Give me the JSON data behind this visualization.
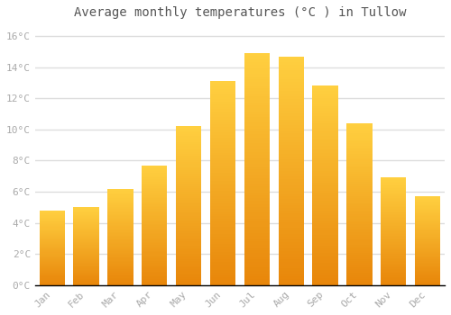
{
  "title": "Average monthly temperatures (°C ) in Tullow",
  "months": [
    "Jan",
    "Feb",
    "Mar",
    "Apr",
    "May",
    "Jun",
    "Jul",
    "Aug",
    "Sep",
    "Oct",
    "Nov",
    "Dec"
  ],
  "temperatures": [
    4.8,
    5.0,
    6.2,
    7.7,
    10.2,
    13.1,
    14.9,
    14.7,
    12.8,
    10.4,
    6.9,
    5.7
  ],
  "yticks": [
    0,
    2,
    4,
    6,
    8,
    10,
    12,
    14,
    16
  ],
  "ytick_labels": [
    "0°C",
    "2°C",
    "4°C",
    "6°C",
    "8°C",
    "10°C",
    "12°C",
    "14°C",
    "16°C"
  ],
  "ylim": [
    0,
    16.8
  ],
  "fig_background": "#ffffff",
  "plot_background": "#ffffff",
  "grid_color": "#dddddd",
  "bar_color_bottom": "#E8860A",
  "bar_color_top": "#FFD040",
  "title_fontsize": 10,
  "tick_fontsize": 8,
  "bar_width": 0.75,
  "title_color": "#555555",
  "tick_color": "#aaaaaa"
}
